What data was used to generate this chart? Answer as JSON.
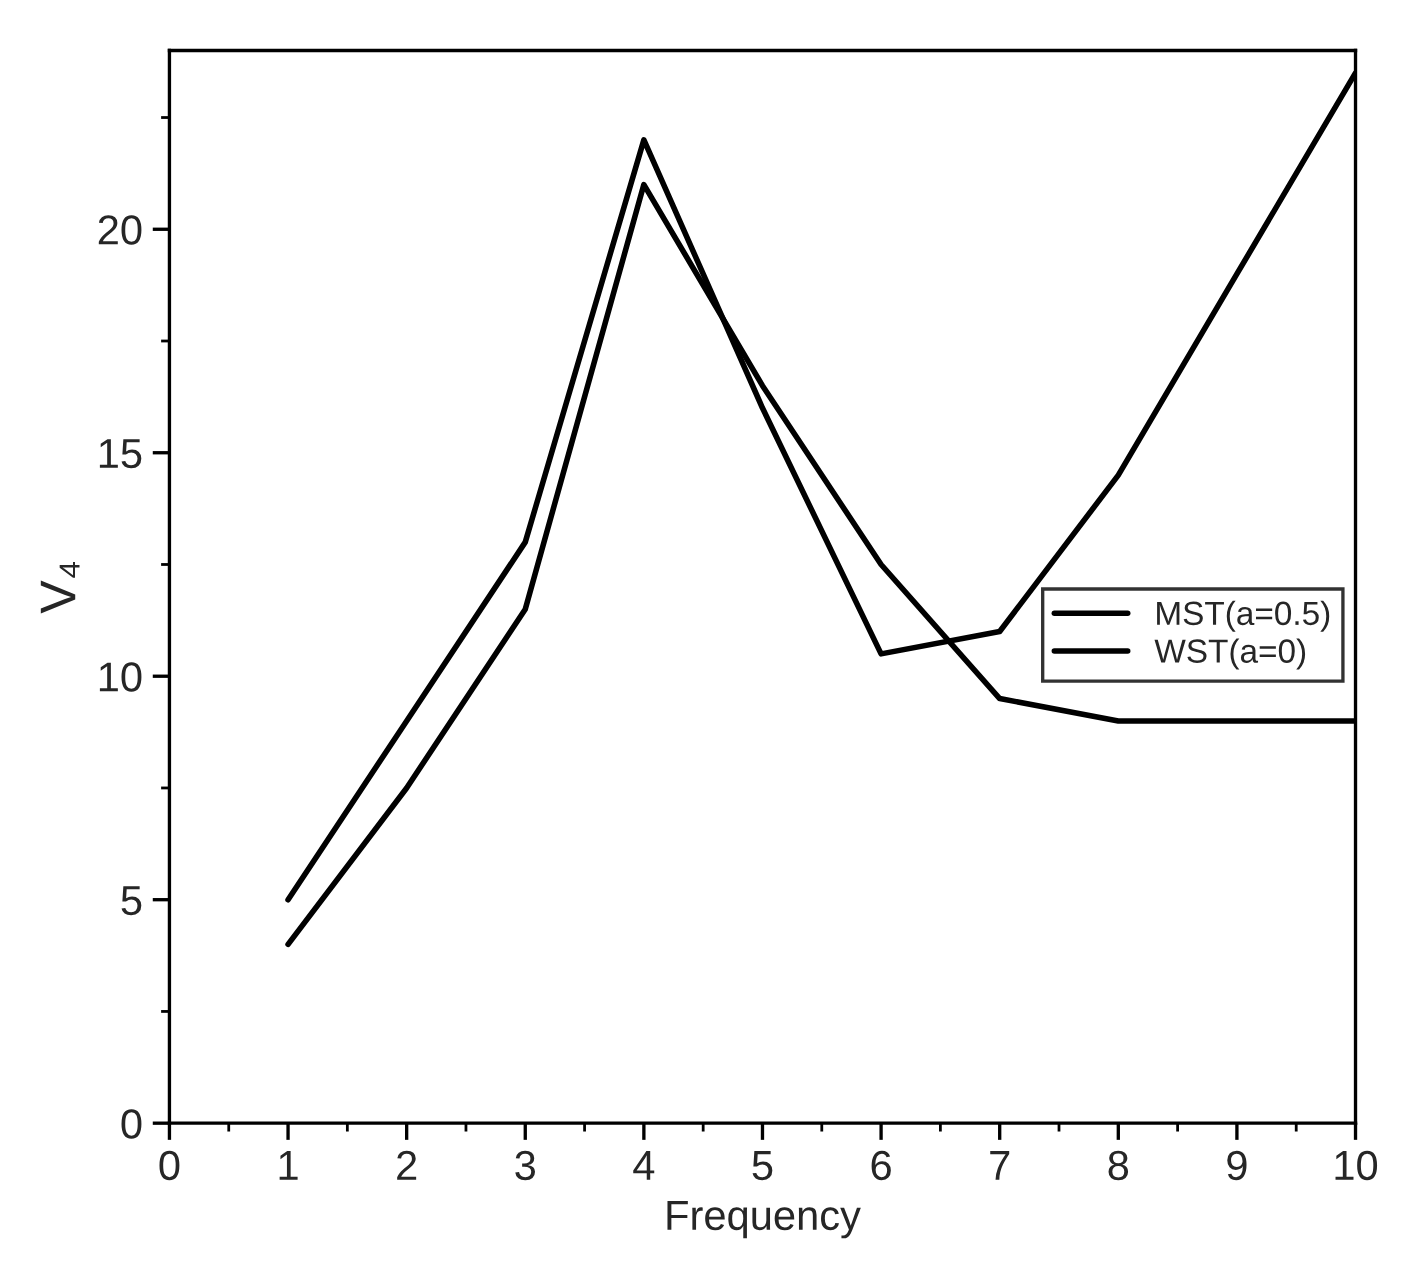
{
  "chart_data": {
    "type": "line",
    "xlabel": "Frequency",
    "ylabel": "V₄",
    "x": [
      1,
      2,
      3,
      4,
      5,
      6,
      7,
      8,
      9,
      10
    ],
    "series": [
      {
        "name": "MST(a=0.5)",
        "color": "#000000",
        "values": [
          5,
          9,
          13,
          22,
          16,
          10.5,
          11,
          14.5,
          19,
          23.5
        ]
      },
      {
        "name": "WST(a=0)",
        "color": "#000000",
        "values": [
          4,
          7.5,
          11.5,
          21,
          16.5,
          12.5,
          9.5,
          9,
          9,
          9
        ]
      }
    ],
    "xlim": [
      0,
      10
    ],
    "xticks": [
      0,
      {
        "value": 0.5,
        "label": null
      },
      1,
      {
        "value": 1.5,
        "label": null
      },
      2,
      {
        "value": 2.5,
        "label": null
      },
      3,
      {
        "value": 3.5,
        "label": null
      },
      4,
      {
        "value": 4.5,
        "label": null
      },
      5,
      {
        "value": 5.5,
        "label": null
      },
      6,
      {
        "value": 6.5,
        "label": null
      },
      7,
      {
        "value": 7.5,
        "label": null
      },
      8,
      {
        "value": 8.5,
        "label": null
      },
      9,
      {
        "value": 9.5,
        "label": null
      },
      10
    ],
    "ylim": [
      0,
      24
    ],
    "yticks": [
      0,
      {
        "value": 2.5,
        "label": null
      },
      5,
      {
        "value": 7.5,
        "label": null
      },
      10,
      {
        "value": 12.5,
        "label": null
      },
      15,
      {
        "value": 17.5,
        "label": null
      },
      20,
      {
        "value": 22.5,
        "label": null
      }
    ],
    "legend": "right"
  }
}
